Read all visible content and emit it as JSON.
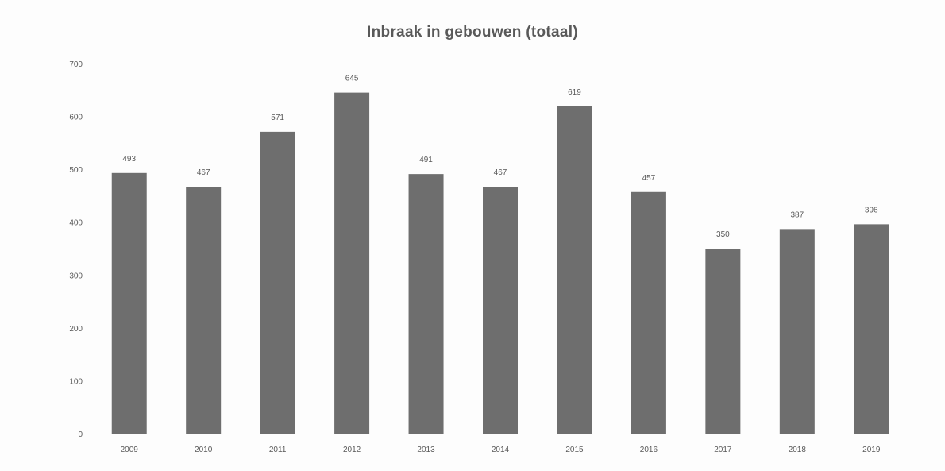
{
  "chart_data": {
    "type": "bar",
    "title": "Inbraak in gebouwen (totaal)",
    "xlabel": "",
    "ylabel": "",
    "categories": [
      "2009",
      "2010",
      "2011",
      "2012",
      "2013",
      "2014",
      "2015",
      "2016",
      "2017",
      "2018",
      "2019"
    ],
    "values": [
      493,
      467,
      571,
      645,
      491,
      467,
      619,
      457,
      350,
      387,
      396
    ],
    "ylim": [
      0,
      700
    ],
    "yticks": [
      0,
      100,
      200,
      300,
      400,
      500,
      600,
      700
    ],
    "grid": false,
    "legend": "none",
    "bar_color": "#6e6e6e",
    "text_color": "#595959"
  }
}
